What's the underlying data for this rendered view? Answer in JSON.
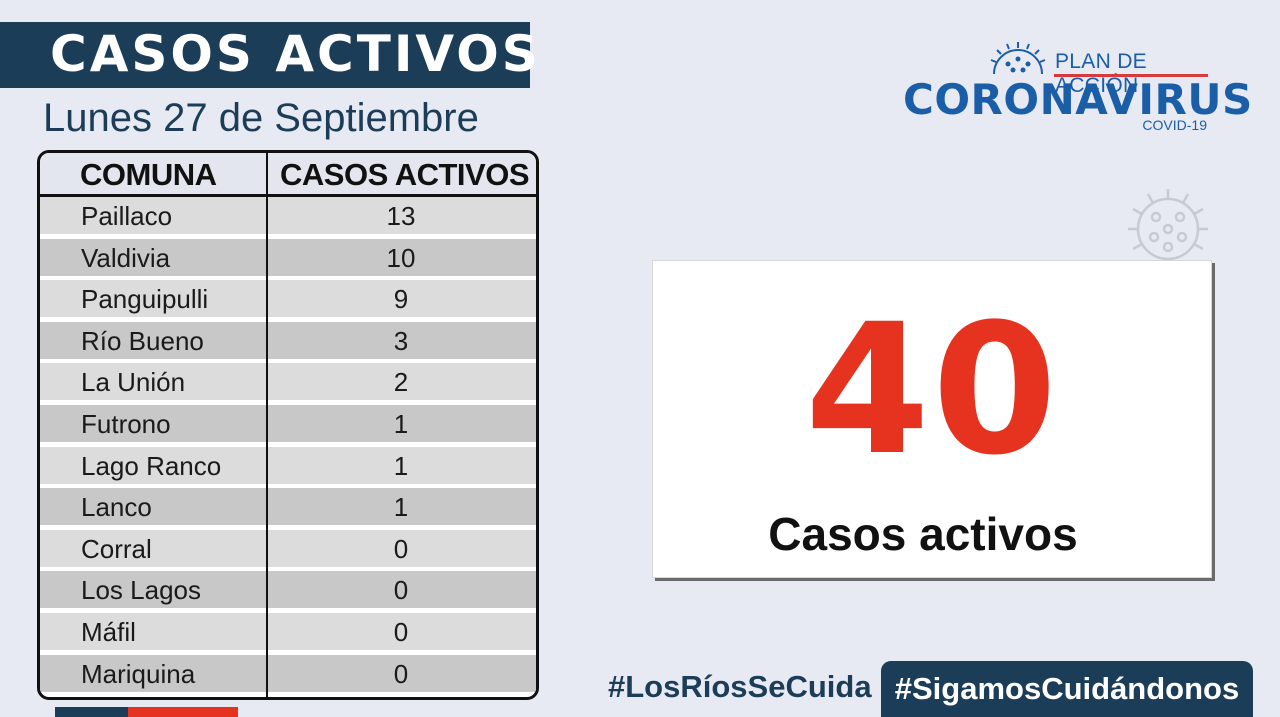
{
  "header": {
    "title": "CASOS ACTIVOS",
    "date": "Lunes 27 de Septiembre"
  },
  "table": {
    "columns": [
      "COMUNA",
      "CASOS ACTIVOS"
    ],
    "rows": [
      {
        "comuna": "Paillaco",
        "casos": "13"
      },
      {
        "comuna": "Valdivia",
        "casos": "10"
      },
      {
        "comuna": "Panguipulli",
        "casos": "9"
      },
      {
        "comuna": "Río Bueno",
        "casos": "3"
      },
      {
        "comuna": "La Unión",
        "casos": "2"
      },
      {
        "comuna": "Futrono",
        "casos": "1"
      },
      {
        "comuna": "Lago Ranco",
        "casos": "1"
      },
      {
        "comuna": "Lanco",
        "casos": "1"
      },
      {
        "comuna": "Corral",
        "casos": "0"
      },
      {
        "comuna": "Los Lagos",
        "casos": "0"
      },
      {
        "comuna": "Máfil",
        "casos": "0"
      },
      {
        "comuna": "Mariquina",
        "casos": "0"
      }
    ]
  },
  "logo": {
    "plan": "PLAN DE ACCIÓN",
    "name": "CORONAVIRUS",
    "sub": "COVID-19",
    "icon": "virus-icon"
  },
  "summary": {
    "total": "40",
    "label": "Casos activos"
  },
  "hashtags": {
    "primary": "#LosRíosSeCuida",
    "secondary": "#SigamosCuidándonos"
  },
  "colors": {
    "navy": "#1c3d57",
    "red": "#e63320",
    "logo_blue": "#1a5ea8",
    "background": "#e8eaf3"
  }
}
